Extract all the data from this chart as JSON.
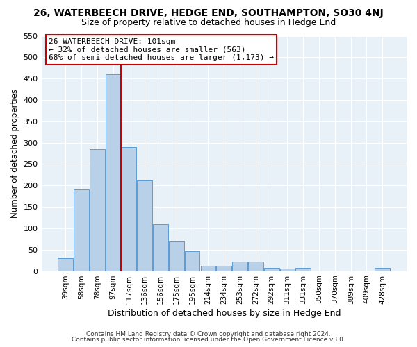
{
  "title": "26, WATERBEECH DRIVE, HEDGE END, SOUTHAMPTON, SO30 4NJ",
  "subtitle": "Size of property relative to detached houses in Hedge End",
  "xlabel": "Distribution of detached houses by size in Hedge End",
  "ylabel": "Number of detached properties",
  "bar_labels": [
    "39sqm",
    "58sqm",
    "78sqm",
    "97sqm",
    "117sqm",
    "136sqm",
    "156sqm",
    "175sqm",
    "195sqm",
    "214sqm",
    "234sqm",
    "253sqm",
    "272sqm",
    "292sqm",
    "311sqm",
    "331sqm",
    "350sqm",
    "370sqm",
    "389sqm",
    "409sqm",
    "428sqm"
  ],
  "bar_heights": [
    30,
    190,
    285,
    460,
    290,
    212,
    110,
    70,
    46,
    13,
    13,
    22,
    22,
    8,
    5,
    8,
    0,
    0,
    0,
    0,
    7
  ],
  "bar_color": "#b8d0e8",
  "bar_edge_color": "#5b9bd5",
  "vline_color": "#cc0000",
  "vline_pos": 3.5,
  "annotation_title": "26 WATERBEECH DRIVE: 101sqm",
  "annotation_line1": "← 32% of detached houses are smaller (563)",
  "annotation_line2": "68% of semi-detached houses are larger (1,173) →",
  "annotation_box_color": "#ffffff",
  "annotation_box_edge": "#cc0000",
  "ylim": [
    0,
    550
  ],
  "yticks": [
    0,
    50,
    100,
    150,
    200,
    250,
    300,
    350,
    400,
    450,
    500,
    550
  ],
  "bg_color": "#e8f0f8",
  "fig_bg_color": "#ffffff",
  "footer1": "Contains HM Land Registry data © Crown copyright and database right 2024.",
  "footer2": "Contains public sector information licensed under the Open Government Licence v3.0."
}
